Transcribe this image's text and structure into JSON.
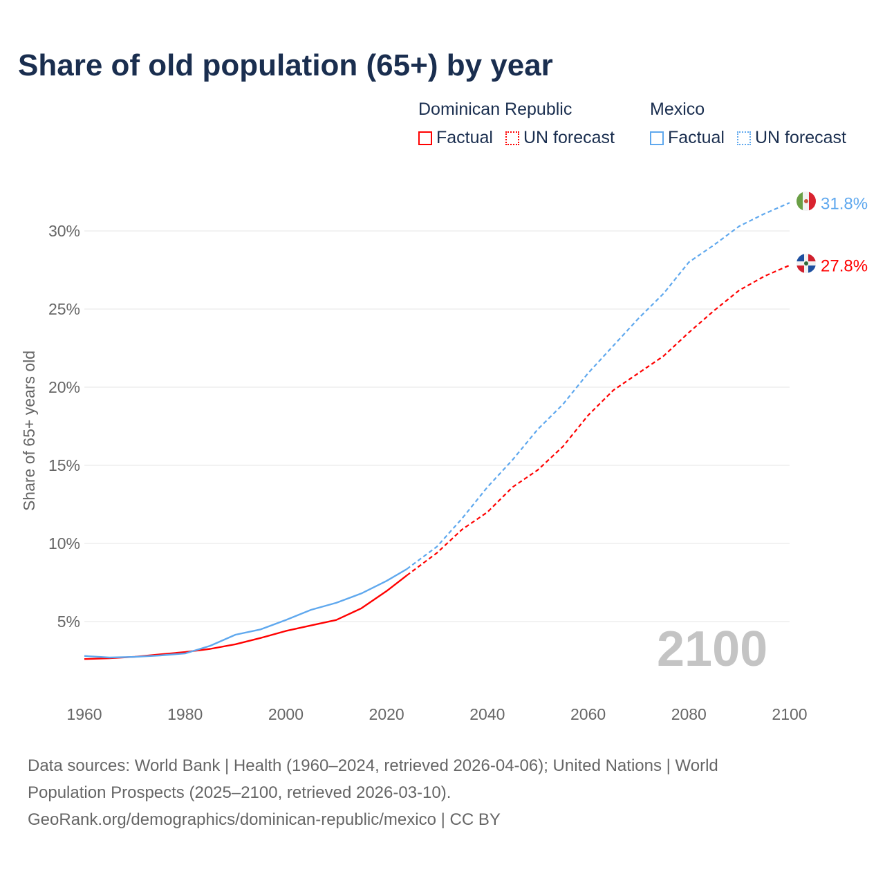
{
  "title": "Share of old population (65+) by year",
  "legend": [
    {
      "country": "Dominican Republic",
      "color": "#ff0000",
      "factual": "Factual",
      "forecast": "UN forecast"
    },
    {
      "country": "Mexico",
      "color": "#5fa8ee",
      "factual": "Factual",
      "forecast": "UN forecast"
    }
  ],
  "chart_data": {
    "type": "line",
    "title": "Share of old population (65+) by year",
    "ylabel": "Share of 65+ years old",
    "xlabel": "",
    "xlim": [
      1960,
      2100
    ],
    "ylim": [
      0,
      32
    ],
    "x_ticks": [
      "1960",
      "1980",
      "2000",
      "2020",
      "2040",
      "2060",
      "2080",
      "2100"
    ],
    "y_ticks": [
      "5%",
      "10%",
      "15%",
      "20%",
      "25%",
      "30%"
    ],
    "y_tick_values": [
      5,
      10,
      15,
      20,
      25,
      30
    ],
    "x_tick_values": [
      1960,
      1980,
      2000,
      2020,
      2040,
      2060,
      2080,
      2100
    ],
    "year_watermark": "2100",
    "grid": "horizontal",
    "series": [
      {
        "name": "Dominican Republic",
        "color": "#ff0000",
        "end_label": "27.8%",
        "factual": {
          "x": [
            1960,
            1965,
            1970,
            1975,
            1980,
            1985,
            1990,
            1995,
            2000,
            2005,
            2010,
            2015,
            2020,
            2024
          ],
          "y": [
            2.6,
            2.65,
            2.75,
            2.9,
            3.05,
            3.25,
            3.55,
            3.95,
            4.4,
            4.75,
            5.1,
            5.85,
            6.95,
            7.95
          ]
        },
        "forecast": {
          "x": [
            2024,
            2030,
            2035,
            2040,
            2045,
            2050,
            2055,
            2060,
            2065,
            2070,
            2075,
            2080,
            2085,
            2090,
            2095,
            2100
          ],
          "y": [
            7.95,
            9.4,
            10.9,
            12.0,
            13.6,
            14.7,
            16.2,
            18.2,
            19.8,
            20.9,
            22.0,
            23.5,
            24.9,
            26.2,
            27.1,
            27.8
          ]
        }
      },
      {
        "name": "Mexico",
        "color": "#5fa8ee",
        "end_label": "31.8%",
        "factual": {
          "x": [
            1960,
            1965,
            1970,
            1975,
            1980,
            1985,
            1990,
            1995,
            2000,
            2005,
            2010,
            2015,
            2020,
            2024
          ],
          "y": [
            2.8,
            2.7,
            2.74,
            2.83,
            2.96,
            3.45,
            4.16,
            4.5,
            5.1,
            5.75,
            6.2,
            6.8,
            7.6,
            8.36
          ]
        },
        "forecast": {
          "x": [
            2024,
            2030,
            2035,
            2040,
            2045,
            2050,
            2055,
            2060,
            2065,
            2070,
            2075,
            2080,
            2085,
            2090,
            2095,
            2100
          ],
          "y": [
            8.36,
            9.8,
            11.6,
            13.6,
            15.35,
            17.3,
            18.9,
            20.9,
            22.65,
            24.4,
            26.0,
            28.0,
            29.1,
            30.3,
            31.1,
            31.8
          ]
        }
      }
    ]
  },
  "footer": {
    "line1": "Data sources: World Bank | Health (1960–2024, retrieved 2026-04-06); United Nations | World",
    "line2": "Population Prospects (2025–2100, retrieved 2026-03-10).",
    "line3": "GeoRank.org/demographics/dominican-republic/mexico | CC BY"
  }
}
